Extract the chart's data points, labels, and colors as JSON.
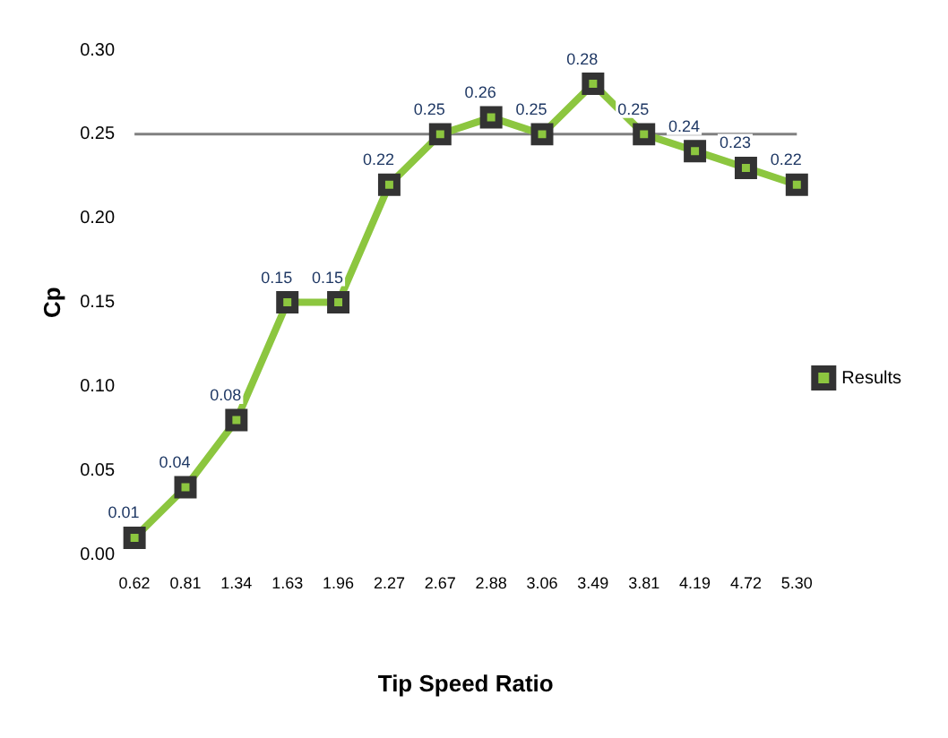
{
  "chart_data": {
    "type": "line",
    "xlabel": "Tip Speed Ratio",
    "ylabel": "Cp",
    "categories": [
      "0.62",
      "0.81",
      "1.34",
      "1.63",
      "1.96",
      "2.27",
      "2.67",
      "2.88",
      "3.06",
      "3.49",
      "3.81",
      "4.19",
      "4.72",
      "5.30"
    ],
    "series": [
      {
        "name": "Results",
        "color": "#8cc63f",
        "values": [
          0.01,
          0.04,
          0.08,
          0.15,
          0.15,
          0.22,
          0.25,
          0.26,
          0.25,
          0.28,
          0.25,
          0.24,
          0.23,
          0.22
        ]
      }
    ],
    "ylim": [
      0,
      0.3
    ],
    "yticks": [
      {
        "value": 0,
        "label": "0.00"
      },
      0.05,
      {
        "value": 0.1,
        "label": "0.10"
      },
      0.15,
      {
        "value": 0.2,
        "label": "0.20"
      },
      0.25,
      {
        "value": 0.3,
        "label": "0.30"
      }
    ],
    "ref_lines": [
      {
        "axis": "y",
        "value": 0.25,
        "color": "#808080"
      }
    ],
    "data_labels": true,
    "marker": "square",
    "legend": "right",
    "grid": false
  }
}
